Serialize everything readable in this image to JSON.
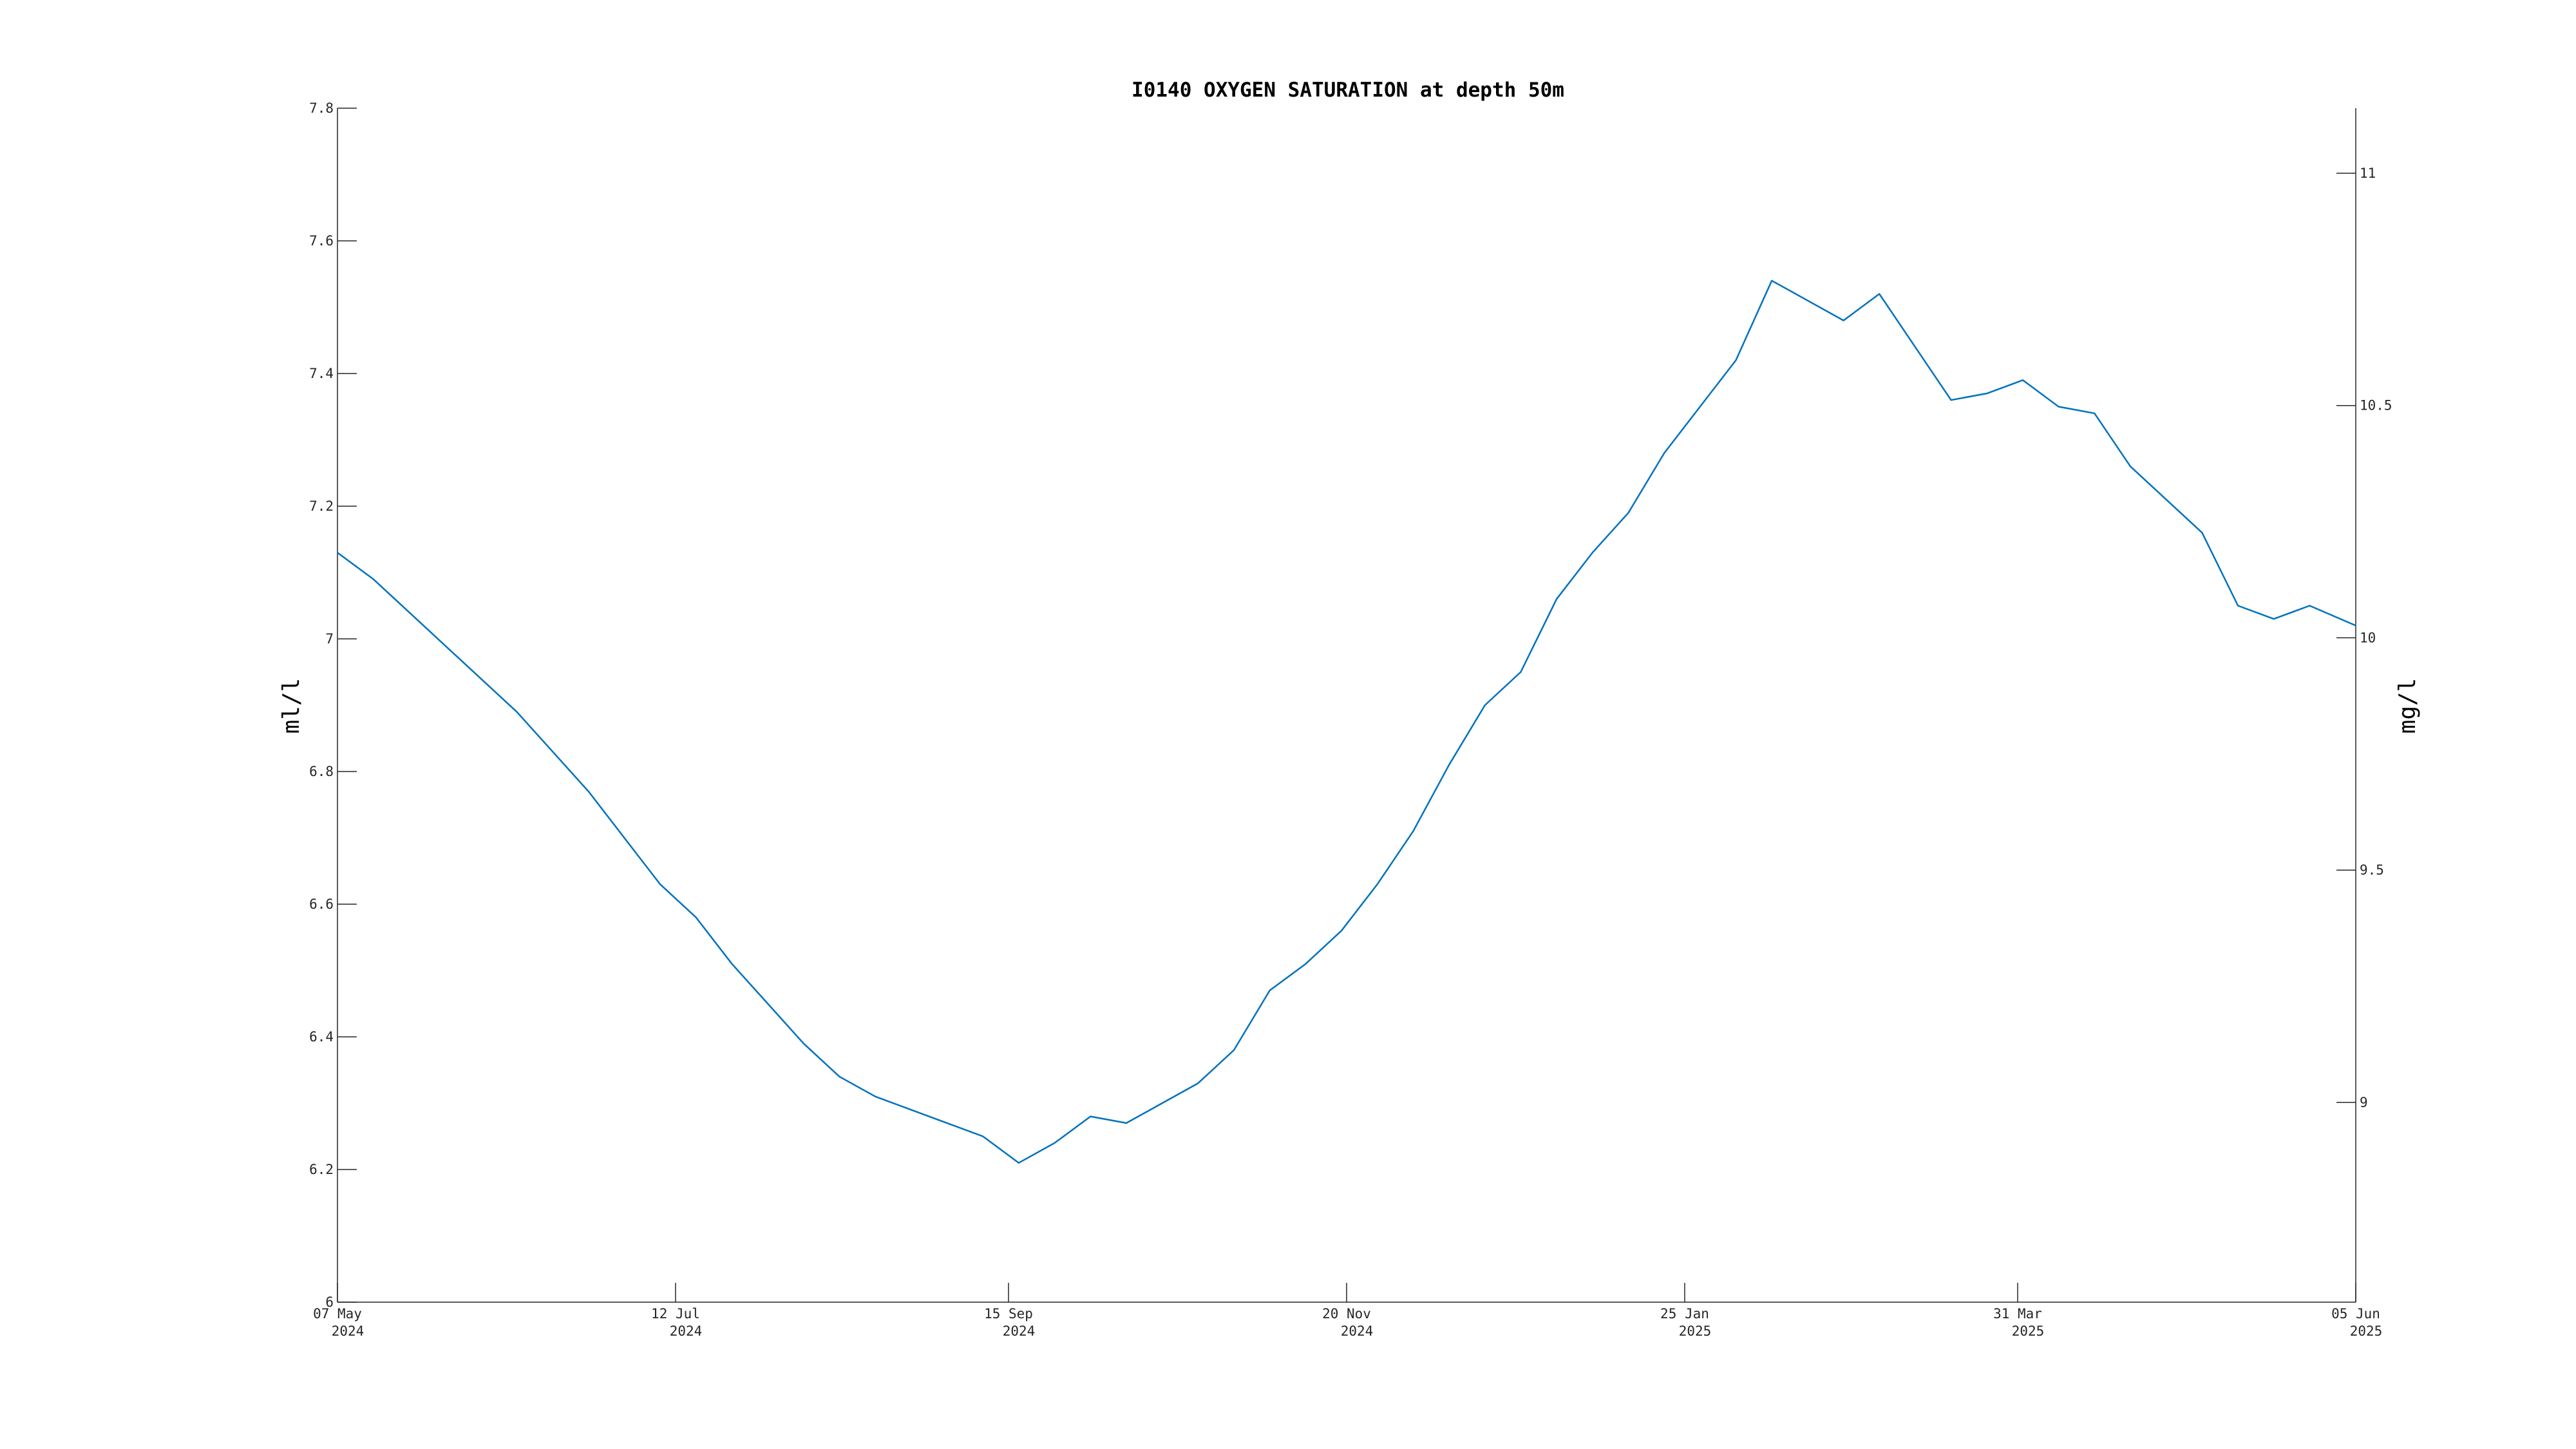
{
  "chart_data": {
    "type": "line",
    "title": "I0140 OXYGEN SATURATION at depth 50m",
    "ylabel": "ml/l",
    "ylabel_right": "mg/l",
    "xlabel": "",
    "grid": false,
    "x_range": [
      "2024-05-07",
      "2025-06-05"
    ],
    "ylim": [
      6,
      7.8
    ],
    "ylim_right": [
      8.57,
      11.14
    ],
    "y_ticks": [
      "6",
      "6.2",
      "6.4",
      "6.6",
      "6.8",
      "7",
      "7.2",
      "7.4",
      "7.6",
      "7.8"
    ],
    "y_ticks_right": [
      "9",
      "9.5",
      "10",
      "10.5",
      "11"
    ],
    "x_ticks": [
      {
        "date": "2024-05-07",
        "day": "07 May",
        "year": "2024"
      },
      {
        "date": "2024-07-12",
        "day": "12 Jul",
        "year": "2024"
      },
      {
        "date": "2024-09-15",
        "day": "15 Sep",
        "year": "2024"
      },
      {
        "date": "2024-11-20",
        "day": "20 Nov",
        "year": "2024"
      },
      {
        "date": "2025-01-25",
        "day": "25 Jan",
        "year": "2025"
      },
      {
        "date": "2025-03-31",
        "day": "31 Mar",
        "year": "2025"
      },
      {
        "date": "2025-06-05",
        "day": "05 Jun",
        "year": "2025"
      }
    ],
    "series": [
      {
        "color": "#0072BD",
        "x": [
          "2024-05-07",
          "2024-05-14",
          "2024-05-21",
          "2024-05-28",
          "2024-06-04",
          "2024-06-11",
          "2024-06-18",
          "2024-06-25",
          "2024-07-02",
          "2024-07-09",
          "2024-07-16",
          "2024-07-23",
          "2024-07-30",
          "2024-08-06",
          "2024-08-13",
          "2024-08-20",
          "2024-08-27",
          "2024-09-03",
          "2024-09-10",
          "2024-09-17",
          "2024-09-24",
          "2024-10-01",
          "2024-10-08",
          "2024-10-15",
          "2024-10-22",
          "2024-10-29",
          "2024-11-05",
          "2024-11-12",
          "2024-11-19",
          "2024-11-26",
          "2024-12-03",
          "2024-12-10",
          "2024-12-17",
          "2024-12-24",
          "2024-12-31",
          "2025-01-07",
          "2025-01-14",
          "2025-01-21",
          "2025-01-28",
          "2025-02-04",
          "2025-02-11",
          "2025-02-18",
          "2025-02-25",
          "2025-03-04",
          "2025-03-11",
          "2025-03-18",
          "2025-03-25",
          "2025-04-01",
          "2025-04-08",
          "2025-04-15",
          "2025-04-22",
          "2025-04-29",
          "2025-05-06",
          "2025-05-13",
          "2025-05-20",
          "2025-05-27",
          "2025-06-05"
        ],
        "y": [
          7.13,
          7.09,
          7.04,
          6.99,
          6.94,
          6.89,
          6.83,
          6.77,
          6.7,
          6.63,
          6.58,
          6.51,
          6.45,
          6.39,
          6.34,
          6.31,
          6.29,
          6.27,
          6.25,
          6.21,
          6.24,
          6.28,
          6.27,
          6.3,
          6.33,
          6.38,
          6.47,
          6.51,
          6.56,
          6.63,
          6.71,
          6.81,
          6.9,
          6.95,
          7.06,
          7.13,
          7.19,
          7.28,
          7.35,
          7.42,
          7.54,
          7.51,
          7.48,
          7.52,
          7.44,
          7.36,
          7.37,
          7.39,
          7.35,
          7.34,
          7.26,
          7.21,
          7.16,
          7.05,
          7.03,
          7.05,
          7.02
        ]
      }
    ]
  }
}
